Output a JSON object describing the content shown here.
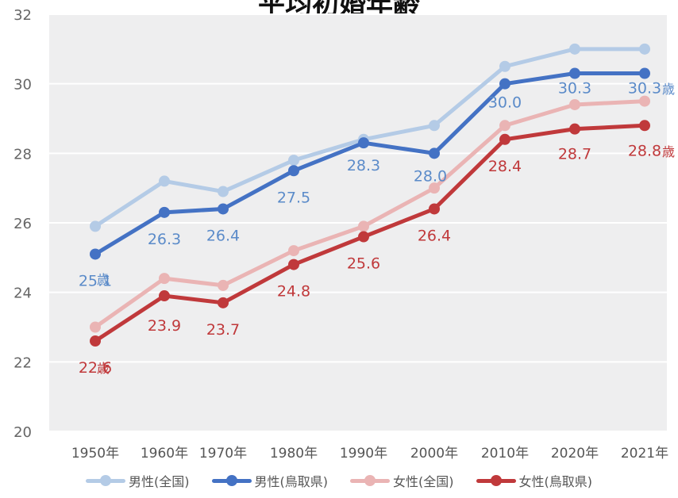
{
  "title": "平均初婚年齢",
  "chart_data": {
    "type": "line",
    "categories": [
      "1950年",
      "1960年",
      "1970年",
      "1980年",
      "1990年",
      "2000年",
      "2010年",
      "2020年",
      "2021年"
    ],
    "ylim": [
      20,
      32
    ],
    "yticks": [
      "20",
      "22",
      "24",
      "26",
      "28",
      "30",
      "32"
    ],
    "grid": true,
    "legend_position": "bottom",
    "unit_label": "歳",
    "series": [
      {
        "name": "男性(全国)",
        "color": "#b4cbe6",
        "values": [
          25.9,
          27.2,
          26.9,
          27.8,
          28.4,
          28.8,
          30.5,
          31.0,
          31.0
        ],
        "labels": []
      },
      {
        "name": "男性(鳥取県)",
        "color": "#4472c4",
        "label_color": "#5b8bc9",
        "values": [
          25.1,
          26.3,
          26.4,
          27.5,
          28.3,
          28.0,
          30.0,
          30.3,
          30.3
        ],
        "labels": [
          "25.1",
          "26.3",
          "26.4",
          "27.5",
          "28.3",
          "28.0",
          "30.0",
          "30.3",
          "30.3"
        ]
      },
      {
        "name": "女性(全国)",
        "color": "#eab4b4",
        "values": [
          23.0,
          24.4,
          24.2,
          25.2,
          25.9,
          27.0,
          28.8,
          29.4,
          29.5
        ],
        "labels": []
      },
      {
        "name": "女性(鳥取県)",
        "color": "#c0393b",
        "label_color": "#c0393b",
        "values": [
          22.6,
          23.9,
          23.7,
          24.8,
          25.6,
          26.4,
          28.4,
          28.7,
          28.8
        ],
        "labels": [
          "22.6",
          "23.9",
          "23.7",
          "24.8",
          "25.6",
          "26.4",
          "28.4",
          "28.7",
          "28.8"
        ]
      }
    ]
  }
}
